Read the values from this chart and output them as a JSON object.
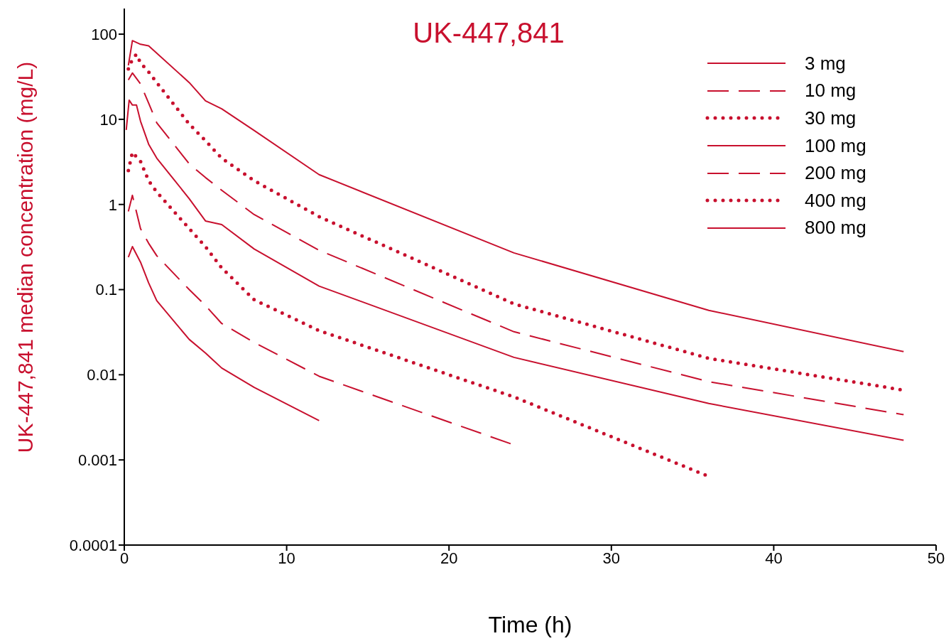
{
  "chart_data": {
    "type": "line",
    "title": "UK-447,841",
    "xlabel": "Time (h)",
    "ylabel": "UK-447,841 median concentration  (mg/L)",
    "xlim": [
      0,
      50
    ],
    "xticks": [
      0,
      10,
      20,
      30,
      40,
      50
    ],
    "ylim": [
      0.0001,
      200
    ],
    "yticks": [
      0.0001,
      0.001,
      0.01,
      0.1,
      1,
      10,
      100
    ],
    "log": "y",
    "grid": false,
    "legend": "top right",
    "marker": "none",
    "series": [
      {
        "name": "3 mg",
        "color": "#c8102e",
        "line_style": "solid",
        "x": [
          0.25,
          0.5,
          1,
          1.5,
          2,
          4,
          5,
          6,
          8,
          12
        ],
        "values": [
          0.24,
          0.32,
          0.21,
          0.12,
          0.074,
          0.026,
          0.018,
          0.012,
          0.0071,
          0.0029
        ]
      },
      {
        "name": "10 mg",
        "color": "#c8102e",
        "line_style": "dashed",
        "x": [
          0.25,
          0.5,
          1,
          1.5,
          2,
          4,
          5,
          6,
          8,
          12,
          24
        ],
        "values": [
          0.83,
          1.28,
          0.52,
          0.35,
          0.25,
          0.1,
          0.065,
          0.04,
          0.024,
          0.0096,
          0.0015
        ]
      },
      {
        "name": "30 mg",
        "color": "#c8102e",
        "line_style": "dotted",
        "x": [
          0.25,
          0.5,
          1,
          1.5,
          2,
          4,
          5,
          6,
          8,
          12,
          24,
          36
        ],
        "values": [
          2.5,
          4.1,
          3.2,
          1.9,
          1.4,
          0.52,
          0.32,
          0.18,
          0.076,
          0.033,
          0.0055,
          0.00064
        ]
      },
      {
        "name": "100 mg",
        "color": "#c8102e",
        "line_style": "solid",
        "x": [
          0.12,
          0.3,
          0.5,
          0.75,
          1,
          1.5,
          2,
          4,
          5,
          6,
          8,
          12,
          24,
          36,
          48
        ],
        "values": [
          7.5,
          16.8,
          14.7,
          14.7,
          9.5,
          5.1,
          3.5,
          1.17,
          0.64,
          0.58,
          0.3,
          0.11,
          0.016,
          0.0046,
          0.0017
        ]
      },
      {
        "name": "200 mg",
        "color": "#c8102e",
        "line_style": "dashed",
        "x": [
          0.25,
          0.5,
          1,
          1.5,
          2,
          4,
          5,
          6,
          8,
          12,
          24,
          36,
          48
        ],
        "values": [
          29,
          35,
          26,
          15.5,
          9.1,
          3.0,
          2.07,
          1.47,
          0.76,
          0.29,
          0.032,
          0.0083,
          0.0034
        ]
      },
      {
        "name": "400 mg",
        "color": "#c8102e",
        "line_style": "dotted",
        "x": [
          0.25,
          0.5,
          0.75,
          1,
          1.5,
          2,
          4,
          5,
          6,
          8,
          12,
          24,
          36,
          48
        ],
        "values": [
          39,
          51,
          58,
          46,
          36,
          27,
          8.8,
          5.6,
          3.5,
          1.9,
          0.72,
          0.068,
          0.0156,
          0.0066
        ]
      },
      {
        "name": "800 mg",
        "color": "#c8102e",
        "line_style": "solid",
        "x": [
          0.25,
          0.5,
          1,
          1.5,
          4,
          5,
          6,
          8,
          12,
          24,
          36,
          48
        ],
        "values": [
          43,
          84,
          76,
          73,
          27,
          16.5,
          13.3,
          7.4,
          2.24,
          0.27,
          0.057,
          0.0187
        ]
      }
    ]
  }
}
